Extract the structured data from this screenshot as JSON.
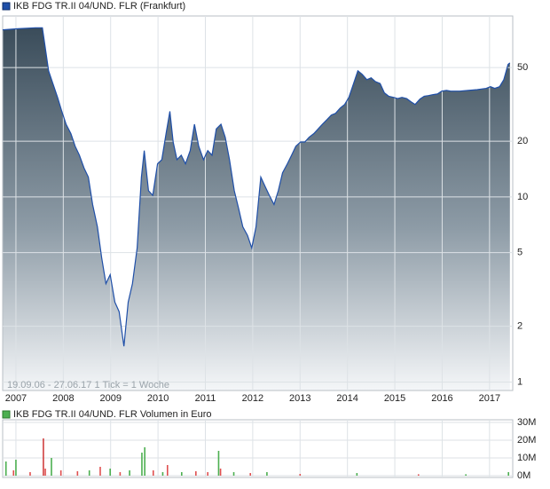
{
  "chart_data": [
    {
      "type": "area",
      "log_y": true,
      "grid": true,
      "annotation": "19.09.06 - 27.06.17   1 Tick = 1 Woche",
      "xlim": [
        2006.72,
        2017.49
      ],
      "xticks": [
        2007,
        2008,
        2009,
        2010,
        2011,
        2012,
        2013,
        2014,
        2015,
        2016,
        2017
      ],
      "ylim": [
        0.9,
        95
      ],
      "yticks": [
        1,
        2,
        5,
        10,
        20,
        50
      ],
      "x": [
        2006.72,
        2007.04,
        2007.41,
        2007.56,
        2007.69,
        2007.78,
        2007.88,
        2007.97,
        2008.06,
        2008.16,
        2008.25,
        2008.34,
        2008.44,
        2008.53,
        2008.62,
        2008.72,
        2008.81,
        2008.9,
        2008.99,
        2009.09,
        2009.18,
        2009.28,
        2009.37,
        2009.46,
        2009.56,
        2009.65,
        2009.71,
        2009.8,
        2009.89,
        2009.99,
        2010.08,
        2010.17,
        2010.25,
        2010.32,
        2010.4,
        2010.49,
        2010.58,
        2010.68,
        2010.77,
        2010.86,
        2010.96,
        2011.05,
        2011.14,
        2011.23,
        2011.33,
        2011.42,
        2011.51,
        2011.61,
        2011.7,
        2011.79,
        2011.89,
        2011.98,
        2012.07,
        2012.17,
        2012.26,
        2012.35,
        2012.45,
        2012.54,
        2012.63,
        2012.73,
        2012.82,
        2012.91,
        2013.01,
        2013.1,
        2013.19,
        2013.29,
        2013.38,
        2013.47,
        2013.57,
        2013.66,
        2013.75,
        2013.85,
        2013.94,
        2014.03,
        2014.13,
        2014.22,
        2014.31,
        2014.41,
        2014.5,
        2014.59,
        2014.69,
        2014.78,
        2014.87,
        2014.97,
        2015.06,
        2015.15,
        2015.25,
        2015.34,
        2015.43,
        2015.53,
        2015.62,
        2015.71,
        2015.81,
        2015.9,
        2015.99,
        2016.09,
        2016.18,
        2016.37,
        2016.55,
        2016.74,
        2016.93,
        2017.02,
        2017.11,
        2017.21,
        2017.3,
        2017.39,
        2017.43
      ],
      "series": [
        {
          "name": "IKB FDG TR.II 04/UND. FLR (Frankfurt)",
          "color": "#1f4fa8",
          "values": [
            80,
            81,
            82,
            82,
            48,
            41,
            34.5,
            29,
            24.7,
            22,
            18.8,
            16.8,
            14.3,
            12.8,
            9.1,
            6.9,
            4.7,
            3.4,
            3.8,
            2.7,
            2.4,
            1.56,
            2.7,
            3.4,
            5.3,
            12.8,
            17.8,
            10.8,
            10.2,
            15.1,
            15.9,
            22,
            29,
            19.8,
            15.9,
            16.8,
            15.1,
            17.8,
            24.7,
            18.8,
            15.9,
            17.8,
            16.8,
            23.3,
            24.7,
            21,
            15.9,
            10.8,
            8.7,
            6.9,
            6.2,
            5.3,
            6.9,
            12.8,
            11.4,
            10.2,
            9.1,
            10.8,
            13.5,
            15.1,
            16.8,
            18.8,
            19.8,
            19.8,
            21,
            22,
            23.3,
            24.7,
            26.2,
            27.7,
            28.3,
            30.3,
            31.6,
            34.5,
            41,
            48,
            46,
            43,
            44,
            42,
            41,
            36.5,
            35,
            34.5,
            34,
            34.5,
            34,
            32.7,
            31.6,
            33.8,
            35,
            35.3,
            35.7,
            36,
            37.3,
            37.6,
            37.3,
            37.3,
            37.6,
            38,
            38.6,
            39.4,
            38.6,
            39.4,
            43,
            52,
            53
          ]
        }
      ]
    },
    {
      "type": "bar",
      "ylim": [
        0,
        30000000
      ],
      "yticks": [
        {
          "value": 0,
          "label": "0M"
        },
        {
          "value": 10000000,
          "label": "10M"
        },
        {
          "value": 20000000,
          "label": "20M"
        },
        {
          "value": 30000000,
          "label": "30M"
        }
      ],
      "x": [
        2006.79,
        2006.95,
        2007.0,
        2007.3,
        2007.58,
        2007.62,
        2007.75,
        2007.95,
        2008.3,
        2008.55,
        2008.78,
        2008.99,
        2009.2,
        2009.4,
        2009.66,
        2009.72,
        2009.9,
        2010.1,
        2010.2,
        2010.5,
        2010.8,
        2011.05,
        2011.28,
        2011.32,
        2011.6,
        2011.95,
        2012.3,
        2013.0,
        2014.2,
        2015.5,
        2016.5,
        2017.4
      ],
      "series": [
        {
          "name": "IKB FDG TR.II 04/UND. FLR Volumen in Euro",
          "color": "#4caf50",
          "values": [
            8000000,
            3000000,
            9000000,
            2000000,
            21000000,
            4000000,
            10000000,
            3000000,
            2500000,
            3000000,
            5000000,
            4000000,
            2000000,
            3000000,
            13000000,
            16000000,
            3000000,
            2000000,
            6000000,
            2000000,
            2500000,
            2000000,
            14000000,
            4000000,
            2000000,
            1500000,
            2000000,
            1000000,
            1500000,
            800000,
            800000,
            2000000
          ]
        }
      ],
      "bar_colors": [
        "#4caf50",
        "#e05050",
        "#4caf50",
        "#e05050",
        "#d04040",
        "#e05050",
        "#4caf50",
        "#e05050",
        "#e05050",
        "#4caf50",
        "#e05050",
        "#4caf50",
        "#e05050",
        "#4caf50",
        "#4caf50",
        "#4caf50",
        "#e05050",
        "#4caf50",
        "#e05050",
        "#4caf50",
        "#e05050",
        "#e05050",
        "#4caf50",
        "#e05050",
        "#4caf50",
        "#e05050",
        "#4caf50",
        "#e05050",
        "#4caf50",
        "#e05050",
        "#4caf50",
        "#4caf50"
      ]
    }
  ]
}
